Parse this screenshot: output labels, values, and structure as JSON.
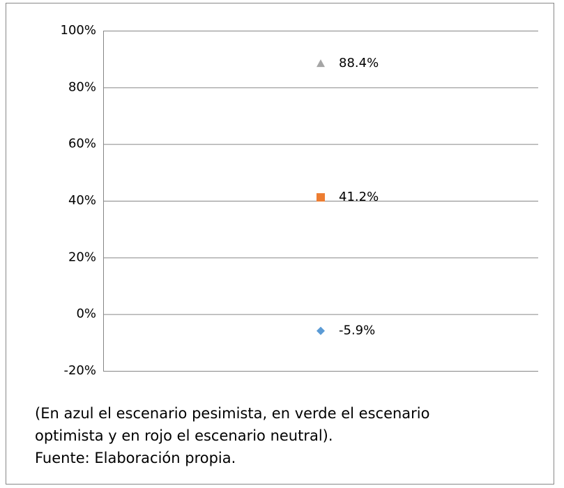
{
  "chart_data": {
    "type": "dot",
    "categories": [
      null
    ],
    "series": [
      {
        "color": "#5b9bd5",
        "marker": "diamond",
        "values": [
          -5.9
        ],
        "value_labels": [
          "-5.9%"
        ]
      },
      {
        "color": "#ed7d31",
        "marker": "square",
        "values": [
          41.2
        ],
        "value_labels": [
          "41.2%"
        ]
      },
      {
        "color": "#a5a5a5",
        "marker": "triangle",
        "values": [
          88.4
        ],
        "value_labels": [
          "88.4%"
        ]
      }
    ],
    "ylim": [
      -20,
      100
    ],
    "yticks": [
      {
        "value": -20,
        "label": "-20%"
      },
      {
        "value": 0,
        "label": "0%"
      },
      {
        "value": 20,
        "label": "20%"
      },
      {
        "value": 40,
        "label": "40%"
      },
      {
        "value": 60,
        "label": "60%"
      },
      {
        "value": 80,
        "label": "80%"
      },
      {
        "value": 100,
        "label": "100%"
      }
    ],
    "grid": true,
    "note": [
      "(En azul el escenario pesimista, en verde el escenario",
      "optimista y en rojo el escenario neutral).",
      "Fuente: Elaboración propia."
    ]
  }
}
